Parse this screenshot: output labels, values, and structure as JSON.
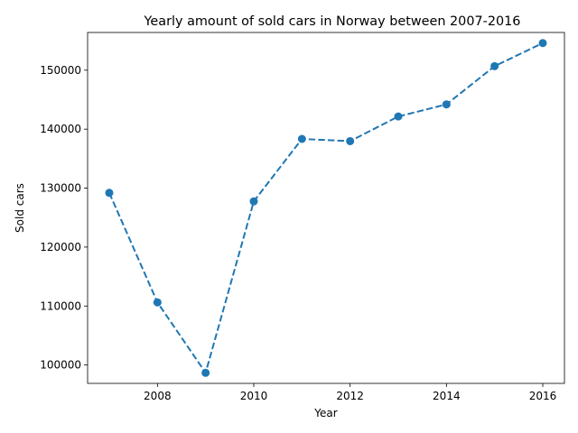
{
  "chart_data": {
    "type": "line",
    "title": "Yearly amount of sold cars in Norway between 2007-2016",
    "xlabel": "Year",
    "ylabel": "Sold cars",
    "x": [
      2007,
      2008,
      2009,
      2010,
      2011,
      2012,
      2013,
      2014,
      2015,
      2016
    ],
    "values": [
      129195,
      110617,
      98675,
      127754,
      138345,
      137967,
      142151,
      144202,
      150686,
      154603
    ],
    "xlim": [
      2006.55,
      2016.45
    ],
    "ylim": [
      96880,
      156400
    ],
    "xticks": [
      2008,
      2010,
      2012,
      2014,
      2016
    ],
    "yticks": [
      100000,
      110000,
      120000,
      130000,
      140000,
      150000
    ],
    "grid": false,
    "line_style": "dashed",
    "marker": "circle",
    "color": "#1f77b4"
  }
}
